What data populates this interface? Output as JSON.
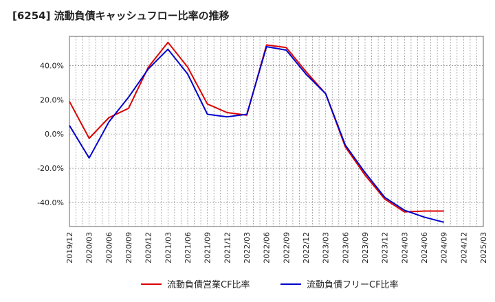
{
  "title": "[6254]  流動負債キャッシュフロー比率の推移",
  "chart_data": {
    "type": "line",
    "title": "[6254]  流動負債キャッシュフロー比率の推移",
    "xlabel": "",
    "ylabel": "",
    "x_ticks": [
      "2019/12",
      "2020/03",
      "2020/06",
      "2020/09",
      "2020/12",
      "2021/03",
      "2021/06",
      "2021/09",
      "2021/12",
      "2022/03",
      "2022/06",
      "2022/09",
      "2022/12",
      "2023/03",
      "2023/06",
      "2023/09",
      "2023/12",
      "2024/03",
      "2024/06",
      "2024/09",
      "2024/12",
      "2025/03"
    ],
    "y_ticks": [
      -40,
      -20,
      0,
      20,
      40
    ],
    "y_tick_labels": [
      "-40.0%",
      "-20.0%",
      "0.0%",
      "20.0%",
      "40.0%"
    ],
    "ylim": [
      -54,
      57
    ],
    "grid": true,
    "legend_position": "bottom",
    "x_points": [
      "2019/12",
      "2020/03",
      "2020/06",
      "2020/09",
      "2020/12",
      "2021/03",
      "2021/06",
      "2021/09",
      "2021/12",
      "2022/03",
      "2022/06",
      "2022/09",
      "2022/12",
      "2023/03",
      "2023/06",
      "2023/09",
      "2023/12",
      "2024/03",
      "2024/06",
      "2024/09"
    ],
    "series": [
      {
        "name": "流動負債営業CF比率",
        "color": "#dd0000",
        "values": [
          19.0,
          -2.5,
          9.5,
          15.0,
          39.0,
          53.5,
          39.0,
          17.5,
          12.5,
          11.0,
          52.0,
          50.5,
          36.5,
          23.5,
          -7.5,
          -24.0,
          -38.0,
          -45.5,
          -45.0,
          -45.0
        ]
      },
      {
        "name": "流動負債フリーCF比率",
        "color": "#0000cc",
        "values": [
          5.0,
          -14.0,
          7.0,
          21.5,
          38.0,
          49.5,
          35.0,
          11.5,
          10.0,
          11.5,
          51.0,
          49.0,
          35.0,
          23.5,
          -6.5,
          -22.5,
          -37.0,
          -44.5,
          -48.5,
          -51.5
        ]
      }
    ]
  }
}
